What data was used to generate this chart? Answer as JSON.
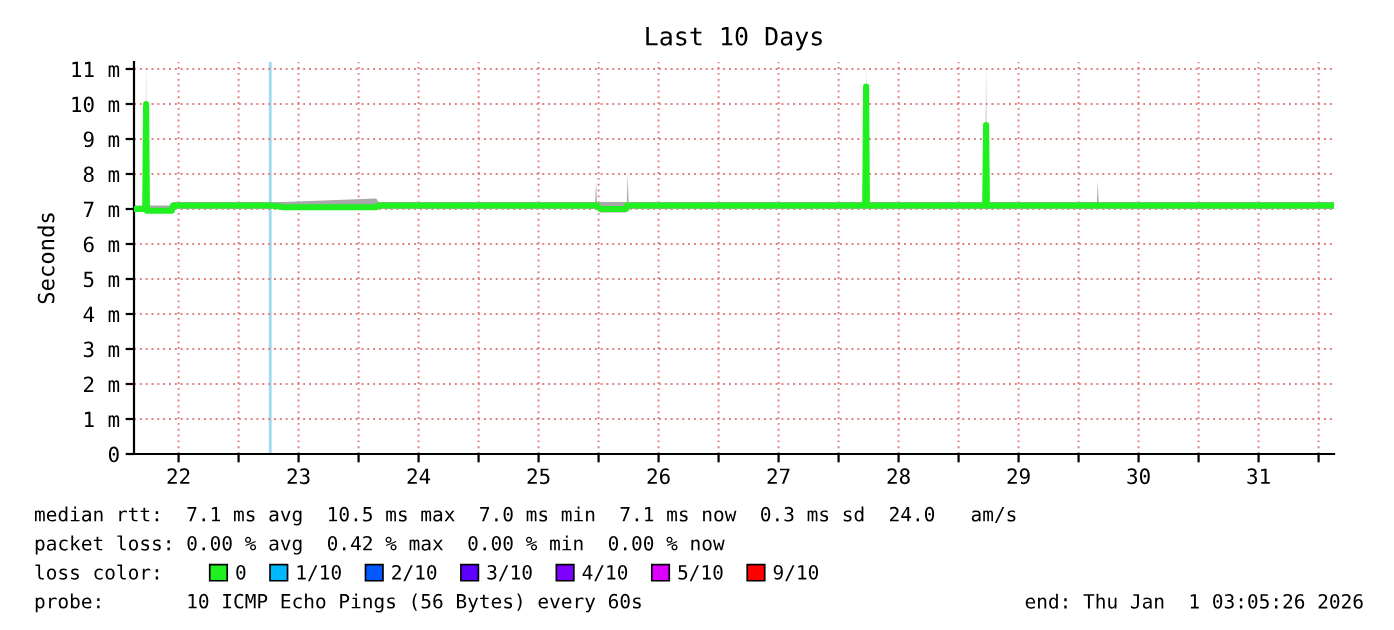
{
  "chart_data": {
    "type": "line",
    "title": "Last 10 Days",
    "ylabel": "Seconds",
    "x": [
      "2025-12-22T03:05",
      "2025-12-22T05:20",
      "2025-12-22T05:30",
      "2025-12-22T05:40",
      "2025-12-22T10:40",
      "2025-12-22T10:50",
      "2025-12-23T06:20",
      "2025-12-23T09:05",
      "2025-12-24T03:30",
      "2025-12-24T04:00",
      "2025-12-25T23:20",
      "2025-12-25T23:30",
      "2025-12-25T23:40",
      "2025-12-26T00:20",
      "2025-12-26T05:30",
      "2025-12-26T05:40",
      "2025-12-26T05:50",
      "2025-12-26T06:00",
      "2025-12-28T05:20",
      "2025-12-28T05:30",
      "2025-12-28T05:40",
      "2025-12-29T05:20",
      "2025-12-29T05:30",
      "2025-12-29T05:40",
      "2025-12-30T03:40",
      "2025-12-30T03:50",
      "2025-12-30T04:00",
      "2026-01-01T03:05"
    ],
    "series": [
      {
        "name": "0",
        "color": "#20f020",
        "values": [
          7.0,
          7.0,
          10.0,
          6.95,
          6.95,
          7.1,
          7.1,
          7.05,
          7.05,
          7.1,
          7.1,
          7.1,
          7.1,
          7.0,
          7.0,
          7.1,
          7.1,
          7.1,
          7.1,
          10.5,
          7.1,
          7.1,
          9.4,
          7.1,
          7.1,
          7.1,
          7.1,
          7.1
        ],
        "lower": [
          7.0,
          7.0,
          7.0,
          6.9,
          6.9,
          7.0,
          7.0,
          7.0,
          7.0,
          7.0,
          7.0,
          7.0,
          7.0,
          6.9,
          6.9,
          7.0,
          7.0,
          7.0,
          7.0,
          7.0,
          7.0,
          7.0,
          7.0,
          7.0,
          7.0,
          7.0,
          7.0,
          7.0
        ],
        "upper": [
          7.1,
          7.1,
          11.2,
          7.1,
          7.1,
          7.2,
          7.2,
          7.2,
          7.3,
          7.2,
          7.2,
          7.8,
          7.2,
          7.2,
          7.2,
          7.2,
          8.0,
          7.2,
          7.2,
          11.2,
          7.2,
          7.2,
          11.2,
          7.2,
          7.2,
          7.8,
          7.2,
          7.2
        ]
      },
      {
        "name": "1/10",
        "color": "#00b8ff",
        "values": [
          null,
          null,
          null,
          null,
          null,
          null,
          null,
          null,
          null,
          null,
          null,
          null,
          null,
          null,
          null,
          null,
          null,
          null,
          null,
          null,
          null,
          null,
          null,
          null,
          null,
          null,
          null,
          null
        ]
      },
      {
        "name": "2/10",
        "color": "#0059ff",
        "values": [
          null,
          null,
          null,
          null,
          null,
          null,
          null,
          null,
          null,
          null,
          null,
          null,
          null,
          null,
          null,
          null,
          null,
          null,
          null,
          null,
          null,
          null,
          null,
          null,
          null,
          null,
          null,
          null
        ]
      },
      {
        "name": "3/10",
        "color": "#5e00ff",
        "values": [
          null,
          null,
          null,
          null,
          null,
          null,
          null,
          null,
          null,
          null,
          null,
          null,
          null,
          null,
          null,
          null,
          null,
          null,
          null,
          null,
          null,
          null,
          null,
          null,
          null,
          null,
          null,
          null
        ]
      },
      {
        "name": "4/10",
        "color": "#7e00ff",
        "values": [
          null,
          null,
          null,
          null,
          null,
          null,
          null,
          null,
          null,
          null,
          null,
          null,
          null,
          null,
          null,
          null,
          null,
          null,
          null,
          null,
          null,
          null,
          null,
          null,
          null,
          null,
          null,
          null
        ]
      },
      {
        "name": "5/10",
        "color": "#dd00ff",
        "values": [
          null,
          null,
          null,
          null,
          null,
          null,
          null,
          null,
          null,
          null,
          null,
          null,
          null,
          null,
          null,
          null,
          null,
          null,
          null,
          null,
          null,
          null,
          null,
          null,
          null,
          null,
          null,
          null
        ]
      },
      {
        "name": "9/10",
        "color": "#ff0000",
        "values": [
          null,
          null,
          null,
          null,
          null,
          null,
          null,
          null,
          null,
          null,
          null,
          null,
          null,
          null,
          null,
          null,
          null,
          null,
          null,
          null,
          null,
          null,
          null,
          null,
          null,
          null,
          null,
          null
        ]
      }
    ],
    "xlim": [
      "2025-12-22T03:05",
      "2026-01-01T03:05"
    ],
    "xticks": [
      {
        "value": "2025-12-22T12:00",
        "label": "22"
      },
      {
        "value": "2025-12-23T12:00",
        "label": "23"
      },
      {
        "value": "2025-12-24T12:00",
        "label": "24"
      },
      {
        "value": "2025-12-25T12:00",
        "label": "25"
      },
      {
        "value": "2025-12-26T12:00",
        "label": "26"
      },
      {
        "value": "2025-12-27T12:00",
        "label": "27"
      },
      {
        "value": "2025-12-28T12:00",
        "label": "28"
      },
      {
        "value": "2025-12-29T12:00",
        "label": "29"
      },
      {
        "value": "2025-12-30T12:00",
        "label": "30"
      },
      {
        "value": "2025-12-31T12:00",
        "label": "31"
      },
      {
        "value": "2025-12-23",
        "label": null
      },
      {
        "value": "2025-12-24",
        "label": null
      },
      {
        "value": "2025-12-25",
        "label": null
      },
      {
        "value": "2025-12-26",
        "label": null
      },
      {
        "value": "2025-12-27",
        "label": null
      },
      {
        "value": "2025-12-28",
        "label": null
      },
      {
        "value": "2025-12-29",
        "label": null
      },
      {
        "value": "2025-12-30",
        "label": null
      },
      {
        "value": "2025-12-31",
        "label": null
      },
      {
        "value": "2026-01-01",
        "label": null
      }
    ],
    "ylim": [
      0,
      11.2
    ],
    "yticks": [
      0,
      {
        "value": 1,
        "label": "1 m"
      },
      {
        "value": 2,
        "label": "2 m"
      },
      {
        "value": 3,
        "label": "3 m"
      },
      {
        "value": 4,
        "label": "4 m"
      },
      {
        "value": 5,
        "label": "5 m"
      },
      {
        "value": 6,
        "label": "6 m"
      },
      {
        "value": 7,
        "label": "7 m"
      },
      {
        "value": 8,
        "label": "8 m"
      },
      {
        "value": 9,
        "label": "9 m"
      },
      {
        "value": 10,
        "label": "10 m"
      },
      {
        "value": 11,
        "label": "11 m"
      }
    ],
    "ref_lines": [
      {
        "axis": "x",
        "value": "2025-12-23T06:20",
        "color": "#a0d8f0"
      }
    ],
    "grid": true,
    "legend": "bottom",
    "marker": "none",
    "line_style": "solid",
    "annotations": [
      "median rtt:  7.1 ms avg  10.5 ms max  7.0 ms min  7.1 ms now  0.3 ms sd  24.0   am/s",
      "packet loss: 0.00 % avg  0.42 % max  0.00 % min  0.00 % now",
      "loss color:",
      "probe:       10 ICMP Echo Pings (56 Bytes) every 60s",
      "end: Thu Jan  1 03:05:26 2026"
    ]
  }
}
